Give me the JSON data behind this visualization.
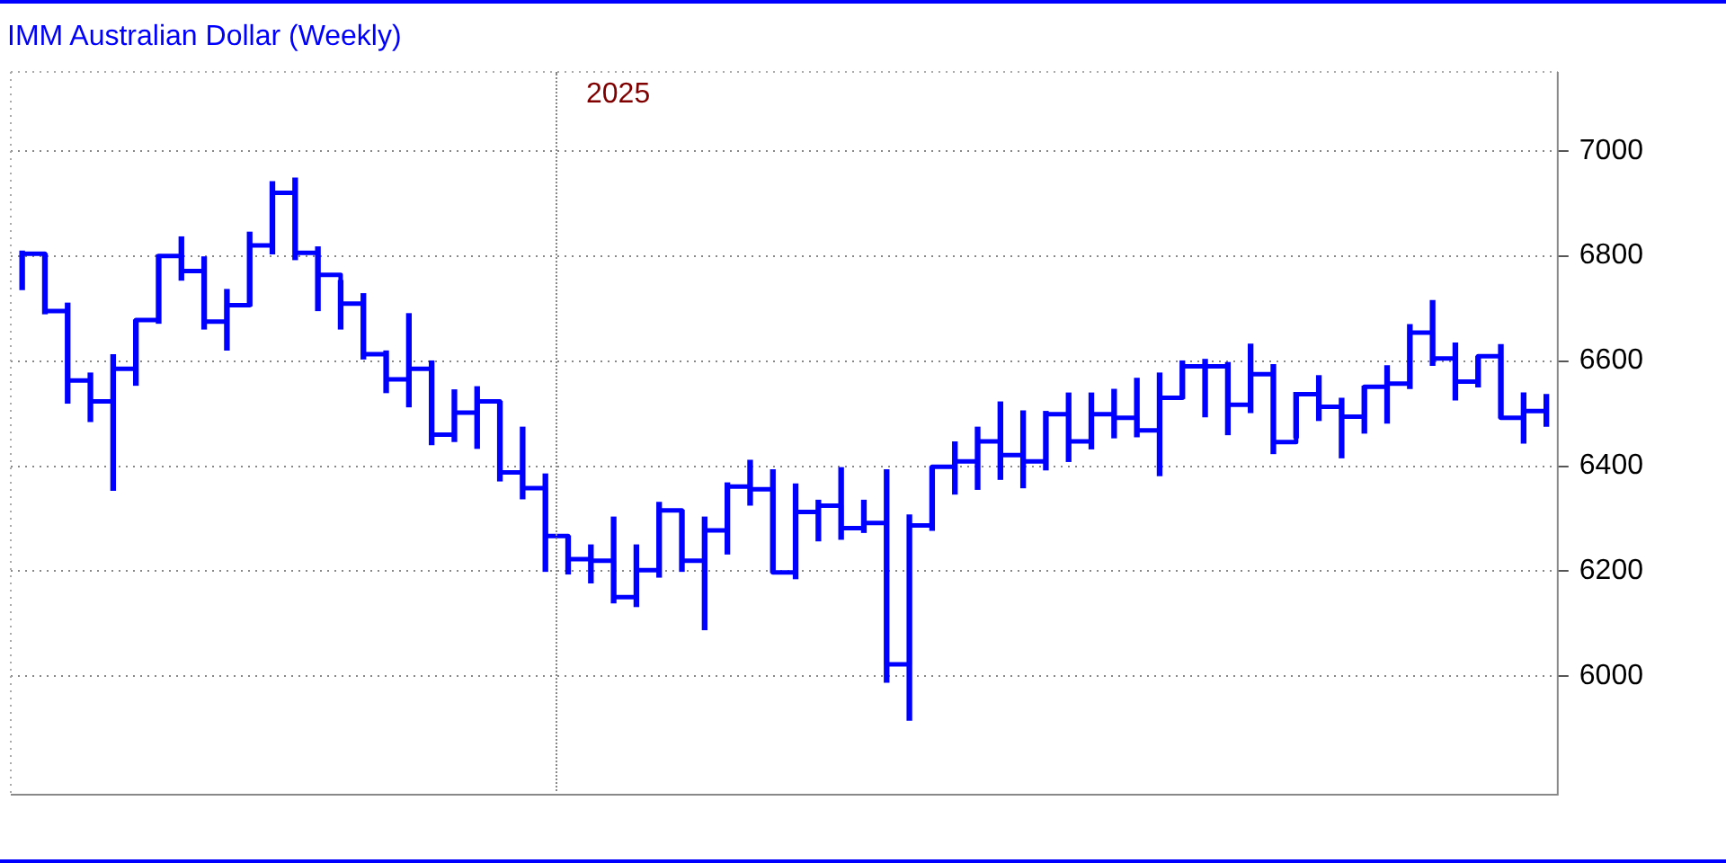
{
  "chart_data": {
    "type": "bar",
    "title": "IMM Australian Dollar (Weekly)",
    "categories": [
      null,
      null,
      null,
      null,
      null,
      null,
      null,
      null,
      null,
      null,
      null,
      null,
      null,
      null,
      null,
      null,
      null,
      null,
      null,
      null,
      null,
      null,
      null,
      null,
      null,
      null,
      null,
      null,
      null,
      null,
      null,
      null,
      null,
      null,
      null,
      null,
      null,
      null,
      null,
      null,
      null,
      null,
      null,
      null,
      null,
      null,
      null,
      null,
      null,
      null,
      null,
      null,
      null,
      null,
      null,
      null,
      null,
      null,
      null,
      null,
      null,
      null,
      null,
      null,
      null,
      null,
      null,
      null
    ],
    "series": [
      {
        "color": "#0000ff",
        "base": [
          6736,
          6690,
          6520,
          6485,
          6354,
          6554,
          6672,
          6754,
          6661,
          6621,
          6705,
          6804,
          6793,
          6696,
          6661,
          6604,
          6540,
          6513,
          6441,
          6447,
          6434,
          6372,
          6338,
          6200,
          6195,
          6178,
          6140,
          6133,
          6189,
          6200,
          6089,
          6233,
          6326,
          6198,
          6186,
          6258,
          6261,
          6274,
          5989,
          5917,
          6278,
          6347,
          6356,
          6375,
          6359,
          6393,
          6409,
          6433,
          6454,
          6456,
          6382,
          6529,
          6494,
          6460,
          6502,
          6424,
          6454,
          6487,
          6416,
          6463,
          6482,
          6548,
          6592,
          6526,
          6551,
          6492,
          6444,
          6476
        ],
        "values": [
          73,
          114,
          190,
          92,
          258,
          124,
          130,
          82,
          137,
          115,
          140,
          137,
          155,
          121,
          92,
          124,
          79,
          177,
          159,
          98,
          117,
          151,
          136,
          185,
          72,
          72,
          163,
          117,
          142,
          116,
          214,
          135,
          85,
          195,
          180,
          77,
          136,
          61,
          404,
          390,
          121,
          99,
          118,
          147,
          146,
          111,
          130,
          106,
          92,
          111,
          195,
          71,
          109,
          137,
          130,
          169,
          86,
          85,
          113,
          89,
          109,
          121,
          123,
          108,
          58,
          139,
          95,
          60
        ]
      },
      {
        "type": "step",
        "color": "#0000ff",
        "values": [
          6804,
          6695,
          6563,
          6523,
          6585,
          6678,
          6800,
          6771,
          6675,
          6706,
          6820,
          6920,
          6806,
          6764,
          6709,
          6613,
          6565,
          6585,
          6460,
          6502,
          6523,
          6388,
          6358,
          6267,
          6223,
          6220,
          6151,
          6202,
          6316,
          6220,
          6278,
          6361,
          6356,
          6198,
          6313,
          6325,
          6282,
          6292,
          6023,
          6287,
          6399,
          6409,
          6447,
          6421,
          6409,
          6499,
          6447,
          6499,
          6492,
          6468,
          6530,
          6590,
          6590,
          6517,
          6575,
          6446,
          6537,
          6513,
          6494,
          6551,
          6557,
          6654,
          6605,
          6561,
          6609,
          6492,
          6505,
          6516
        ]
      }
    ],
    "ylim": [
      5775,
      7150
    ],
    "yticks": [
      6000,
      6200,
      6400,
      6600,
      6800,
      7000
    ],
    "tick_labels": "y",
    "grid": "y",
    "legend": false,
    "annotations": [
      "2025"
    ]
  }
}
